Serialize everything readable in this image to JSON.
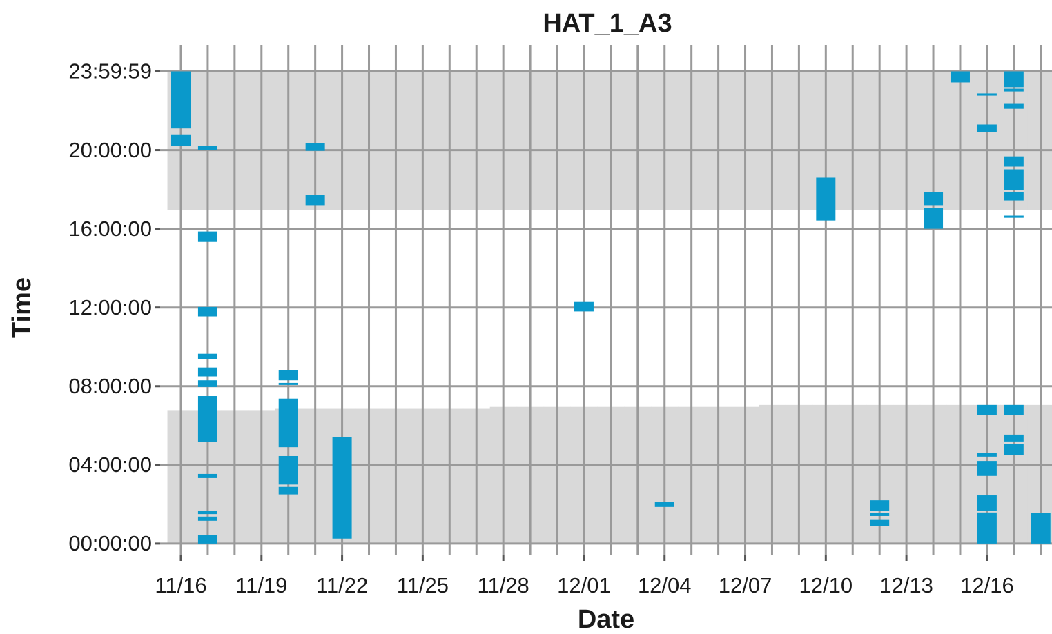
{
  "chart_data": {
    "type": "interval",
    "title": "HAT_1_A3",
    "x_label": "Date",
    "y_label": "Time",
    "color": "#0a99cb",
    "shade_color": "#d9d9d9",
    "grid": true,
    "categories": [
      "11/16",
      null,
      null,
      "11/19",
      null,
      null,
      "11/22",
      null,
      null,
      "11/25",
      null,
      null,
      "11/28",
      null,
      null,
      "12/01",
      null,
      null,
      "12/04",
      null,
      null,
      "12/07",
      null,
      null,
      "12/10",
      null,
      null,
      "12/13",
      null,
      null,
      "12/16",
      null,
      null
    ],
    "sunrise": [
      6.75,
      6.75,
      6.75,
      6.75,
      6.85,
      6.85,
      6.85,
      6.85,
      6.85,
      6.85,
      6.85,
      6.85,
      6.95,
      6.95,
      6.95,
      6.95,
      6.95,
      6.95,
      6.95,
      6.95,
      6.95,
      6.95,
      7.05,
      7.05,
      7.05,
      7.05,
      7.05,
      7.05,
      7.05,
      7.05,
      7.05,
      7.05,
      7.05
    ],
    "sunset": [
      16.95,
      16.95,
      16.95,
      16.95,
      16.95,
      16.95,
      16.95,
      16.95,
      16.95,
      16.95,
      16.95,
      16.95,
      16.95,
      16.95,
      16.95,
      16.95,
      16.95,
      16.95,
      16.95,
      16.95,
      16.95,
      16.95,
      16.95,
      16.95,
      16.95,
      16.95,
      16.95,
      16.95,
      16.95,
      16.95,
      16.95,
      16.95,
      16.95
    ],
    "values": [
      [
        [
          21.1,
          24
        ],
        [
          20.2,
          20.8
        ]
      ],
      [
        [
          20.0,
          20.2
        ],
        [
          15.33,
          15.86
        ],
        [
          11.55,
          12.03
        ],
        [
          9.37,
          9.65
        ],
        [
          8.5,
          8.95
        ],
        [
          7.96,
          8.3
        ],
        [
          5.16,
          7.5
        ],
        [
          3.33,
          3.54
        ],
        [
          1.5,
          1.68
        ],
        [
          1.16,
          1.37
        ],
        [
          0,
          0.45
        ]
      ],
      [],
      [],
      [
        [
          8.3,
          8.8
        ],
        [
          8.07,
          8.17
        ],
        [
          4.9,
          7.37
        ],
        [
          3.0,
          4.45
        ],
        [
          2.5,
          2.88
        ]
      ],
      [
        [
          19.96,
          20.35
        ],
        [
          17.2,
          17.72
        ]
      ],
      [
        [
          0.25,
          5.4
        ]
      ],
      [],
      [],
      [],
      [],
      [],
      [],
      [],
      [],
      [
        [
          11.8,
          12.28
        ]
      ],
      [],
      [],
      [
        [
          1.86,
          2.1
        ]
      ],
      [],
      [],
      [],
      [],
      [],
      [
        [
          16.42,
          18.6
        ]
      ],
      [],
      [
        [
          1.65,
          2.2
        ],
        [
          1.4,
          1.54
        ],
        [
          0.9,
          1.2
        ]
      ],
      [],
      [
        [
          16.0,
          17.05
        ],
        [
          17.2,
          17.86
        ]
      ],
      [
        [
          23.44,
          24
        ]
      ],
      [
        [
          22.77,
          22.88
        ],
        [
          20.9,
          21.3
        ],
        [
          6.53,
          7.05
        ],
        [
          4.42,
          4.6
        ],
        [
          3.44,
          4.2
        ],
        [
          1.68,
          2.45
        ],
        [
          0,
          1.58
        ]
      ],
      [
        [
          23.2,
          24
        ],
        [
          22.98,
          23.12
        ],
        [
          22.1,
          22.35
        ],
        [
          19.16,
          19.68
        ],
        [
          17.96,
          19.02
        ],
        [
          17.44,
          17.86
        ],
        [
          16.56,
          16.67
        ],
        [
          6.53,
          7.05
        ],
        [
          5.19,
          5.54
        ],
        [
          4.49,
          5.05
        ]
      ],
      [
        [
          0,
          1.55
        ]
      ]
    ],
    "ylim": [
      -0.6,
      25.35
    ],
    "yticks": [
      {
        "value": 0,
        "label": "00:00:00"
      },
      {
        "value": 4,
        "label": "04:00:00"
      },
      {
        "value": 8,
        "label": "08:00:00"
      },
      {
        "value": 12,
        "label": "12:00:00"
      },
      {
        "value": 16,
        "label": "16:00:00"
      },
      {
        "value": 20,
        "label": "20:00:00"
      },
      {
        "value": 23.9997,
        "label": "23:59:59"
      }
    ]
  }
}
